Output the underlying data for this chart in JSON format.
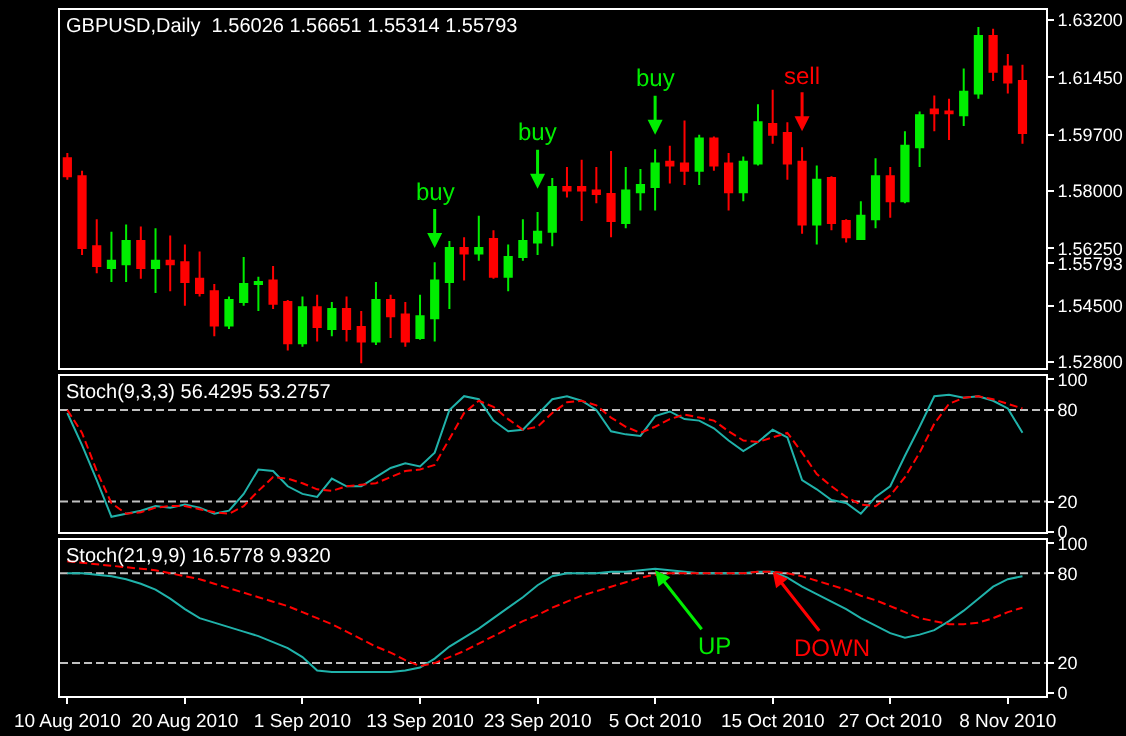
{
  "chart_data": [
    {
      "type": "candlestick",
      "title": "GBPUSD,Daily  1.56026 1.56651 1.55314 1.55793",
      "categories": [
        null,
        null,
        null,
        null,
        null,
        null,
        null,
        null,
        null,
        null,
        null,
        null,
        null,
        null,
        null,
        null,
        null,
        null,
        null,
        null,
        null,
        null,
        null,
        null,
        null,
        null,
        null,
        null,
        null,
        null,
        null,
        null,
        null,
        null,
        null,
        null,
        null,
        null,
        null,
        null,
        null,
        null,
        null,
        null,
        null,
        null,
        null,
        null,
        null,
        null,
        null,
        null,
        null,
        null,
        null,
        null,
        null,
        null,
        null,
        null,
        null,
        null,
        null,
        null,
        null,
        null
      ],
      "ohlc": [
        [
          1.5899,
          1.5915,
          1.5833,
          1.5844
        ],
        [
          1.5844,
          1.5861,
          1.5604,
          1.5626
        ],
        [
          1.5631,
          1.5713,
          1.5549,
          1.5571
        ],
        [
          1.5565,
          1.5675,
          1.5522,
          1.5587
        ],
        [
          1.5576,
          1.5697,
          1.5522,
          1.5647
        ],
        [
          1.5647,
          1.5691,
          1.5532,
          1.5565
        ],
        [
          1.5565,
          1.5686,
          1.5489,
          1.5587
        ],
        [
          1.5587,
          1.5664,
          1.5494,
          1.5576
        ],
        [
          1.5582,
          1.5636,
          1.545,
          1.5522
        ],
        [
          1.5532,
          1.5615,
          1.5478,
          1.5489
        ],
        [
          1.5494,
          1.5516,
          1.5357,
          1.539
        ],
        [
          1.539,
          1.5478,
          1.5379,
          1.5467
        ],
        [
          1.5461,
          1.5598,
          1.545,
          1.5516
        ],
        [
          1.5516,
          1.5538,
          1.5434,
          1.5522
        ],
        [
          1.5527,
          1.5571,
          1.544,
          1.5456
        ],
        [
          1.5461,
          1.5467,
          1.5314,
          1.5336
        ],
        [
          1.5336,
          1.5478,
          1.5325,
          1.5445
        ],
        [
          1.5445,
          1.5483,
          1.5341,
          1.5385
        ],
        [
          1.5379,
          1.5461,
          1.5357,
          1.544
        ],
        [
          1.544,
          1.5478,
          1.5341,
          1.5379
        ],
        [
          1.5385,
          1.5434,
          1.5275,
          1.5341
        ],
        [
          1.5341,
          1.5522,
          1.533,
          1.5467
        ],
        [
          1.5467,
          1.5483,
          1.5352,
          1.5418
        ],
        [
          1.5423,
          1.5461,
          1.5325,
          1.5341
        ],
        [
          1.5352,
          1.5483,
          1.5346,
          1.5418
        ],
        [
          1.5412,
          1.5582,
          1.5341,
          1.5527
        ],
        [
          1.5522,
          1.5647,
          1.544,
          1.5626
        ],
        [
          1.5626,
          1.5658,
          1.5527,
          1.5609
        ],
        [
          1.5609,
          1.5724,
          1.5587,
          1.5626
        ],
        [
          1.5653,
          1.568,
          1.5532,
          1.5538
        ],
        [
          1.5538,
          1.5636,
          1.5494,
          1.5598
        ],
        [
          1.5598,
          1.5713,
          1.5587,
          1.5647
        ],
        [
          1.5642,
          1.5735,
          1.5604,
          1.5675
        ],
        [
          1.5675,
          1.5839,
          1.5631,
          1.5811
        ],
        [
          1.5811,
          1.5872,
          1.5779,
          1.5801
        ],
        [
          1.5811,
          1.5894,
          1.5708,
          1.5801
        ],
        [
          1.5801,
          1.5872,
          1.5762,
          1.579
        ],
        [
          1.579,
          1.5921,
          1.5658,
          1.5708
        ],
        [
          1.5702,
          1.5872,
          1.5686,
          1.5801
        ],
        [
          1.5795,
          1.5866,
          1.574,
          1.5817
        ],
        [
          1.5811,
          1.5926,
          1.574,
          1.5883
        ],
        [
          1.5888,
          1.5937,
          1.5822,
          1.5877
        ],
        [
          1.5883,
          1.6014,
          1.5817,
          1.5861
        ],
        [
          1.5861,
          1.597,
          1.5817,
          1.5959
        ],
        [
          1.5959,
          1.5965,
          1.5861,
          1.5877
        ],
        [
          1.5883,
          1.5915,
          1.574,
          1.5795
        ],
        [
          1.5795,
          1.5904,
          1.5768,
          1.5888
        ],
        [
          1.5883,
          1.6063,
          1.5877,
          1.6008
        ],
        [
          1.6003,
          1.6107,
          1.5943,
          1.597
        ],
        [
          1.5976,
          1.6008,
          1.5833,
          1.5883
        ],
        [
          1.5888,
          1.5932,
          1.5669,
          1.5697
        ],
        [
          1.5697,
          1.5877,
          1.5636,
          1.5833
        ],
        [
          1.5839,
          1.5844,
          1.568,
          1.5702
        ],
        [
          1.5708,
          1.5713,
          1.5642,
          1.5658
        ],
        [
          1.5653,
          1.5768,
          1.5653,
          1.5724
        ],
        [
          1.5713,
          1.5899,
          1.5686,
          1.5844
        ],
        [
          1.5844,
          1.5872,
          1.5718,
          1.5768
        ],
        [
          1.5768,
          1.5981,
          1.5762,
          1.5937
        ],
        [
          1.5932,
          1.6041,
          1.5872,
          1.603
        ],
        [
          1.6047,
          1.609,
          1.5981,
          1.6036
        ],
        [
          1.6041,
          1.608,
          1.5954,
          1.6036
        ],
        [
          1.603,
          1.6172,
          1.5997,
          1.6101
        ],
        [
          1.6096,
          1.6298,
          1.608,
          1.6271
        ],
        [
          1.6271,
          1.6293,
          1.6134,
          1.6162
        ],
        [
          1.6178,
          1.6216,
          1.6096,
          1.6129
        ],
        [
          1.6134,
          1.6183,
          1.5943,
          1.5976
        ]
      ],
      "ylim": [
        1.526,
        1.635
      ],
      "yticks": [
        {
          "value": 1.528,
          "label": "1.52800"
        },
        {
          "value": 1.545,
          "label": "1.54500"
        },
        {
          "value": 1.55793,
          "label": "1.55793"
        },
        {
          "value": 1.5625,
          "label": "1.56250"
        },
        {
          "value": 1.58,
          "label": "1.58000"
        },
        {
          "value": 1.597,
          "label": "1.59700"
        },
        {
          "value": 1.6145,
          "label": "1.61450"
        },
        {
          "value": 1.632,
          "label": "1.63200"
        }
      ],
      "annotations": [
        "buy",
        "buy",
        "buy",
        "sell"
      ],
      "tick_labels": "y",
      "grid": false
    },
    {
      "type": "line",
      "title": "Stoch(9,3,3) 56.4295 53.2757",
      "categories": [
        null,
        null,
        null,
        null,
        null,
        null,
        null,
        null,
        null,
        null,
        null,
        null,
        null,
        null,
        null,
        null,
        null,
        null,
        null,
        null,
        null,
        null,
        null,
        null,
        null,
        null,
        null,
        null,
        null,
        null,
        null,
        null,
        null,
        null,
        null,
        null,
        null,
        null,
        null,
        null,
        null,
        null,
        null,
        null,
        null,
        null,
        null,
        null,
        null,
        null,
        null,
        null,
        null,
        null,
        null,
        null,
        null,
        null,
        null,
        null,
        null,
        null,
        null,
        null,
        null,
        null
      ],
      "series": [
        {
          "color": "#20b2aa",
          "line_style": "solid",
          "values": [
            78,
            57,
            34,
            10,
            12,
            14,
            17,
            16,
            18,
            16,
            12,
            14,
            25,
            41,
            40,
            30,
            25,
            23,
            35,
            30,
            30,
            36,
            42,
            45,
            43,
            52,
            80,
            89,
            87,
            73,
            66,
            67,
            77,
            87,
            89,
            86,
            80,
            66,
            64,
            63,
            76,
            79,
            74,
            73,
            68,
            60,
            53,
            59,
            67,
            62,
            34,
            28,
            21,
            19,
            12,
            23,
            30,
            50,
            69,
            89,
            90,
            88,
            89,
            86,
            81,
            65
          ]
        },
        {
          "color": "#ff0000",
          "line_style": "dashed",
          "values": [
            80,
            65,
            40,
            19,
            12,
            13,
            16,
            17,
            17,
            15,
            13,
            12,
            17,
            27,
            36,
            35,
            32,
            28,
            27,
            30,
            31,
            32,
            36,
            40,
            41,
            44,
            61,
            78,
            86,
            82,
            74,
            67,
            69,
            78,
            85,
            86,
            83,
            75,
            69,
            65,
            69,
            74,
            77,
            75,
            73,
            66,
            60,
            59,
            62,
            65,
            52,
            38,
            30,
            23,
            18,
            17,
            24,
            36,
            52,
            71,
            84,
            88,
            89,
            87,
            84,
            81
          ]
        }
      ],
      "ylim": [
        0,
        102
      ],
      "yticks": [
        0,
        20,
        80,
        100
      ],
      "ref_lines": [
        {
          "axis": "y",
          "value": 20,
          "color": "#c0c0c0",
          "line_style": "dashed"
        },
        {
          "axis": "y",
          "value": 80,
          "color": "#c0c0c0",
          "line_style": "dashed"
        }
      ],
      "tick_labels": "y",
      "grid": false,
      "marker": "none"
    },
    {
      "type": "line",
      "title": "Stoch(21,9,9) 16.5778 9.9320",
      "categories": [
        "10 Aug 2010",
        null,
        null,
        null,
        null,
        null,
        null,
        null,
        "20 Aug 2010",
        null,
        null,
        null,
        null,
        null,
        null,
        null,
        "1 Sep 2010",
        null,
        null,
        null,
        null,
        null,
        null,
        null,
        "13 Sep 2010",
        null,
        null,
        null,
        null,
        null,
        null,
        null,
        "23 Sep 2010",
        null,
        null,
        null,
        null,
        null,
        null,
        null,
        "5 Oct 2010",
        null,
        null,
        null,
        null,
        null,
        null,
        null,
        "15 Oct 2010",
        null,
        null,
        null,
        null,
        null,
        null,
        null,
        "27 Oct 2010",
        null,
        null,
        null,
        null,
        null,
        null,
        null,
        "8 Nov 2010",
        null
      ],
      "series": [
        {
          "color": "#20b2aa",
          "line_style": "solid",
          "values": [
            80,
            80,
            79,
            78,
            76,
            73,
            69,
            63,
            56,
            50,
            47,
            44,
            41,
            38,
            34,
            30,
            24,
            15,
            14,
            14,
            14,
            14,
            14,
            15,
            17,
            23,
            31,
            37,
            43,
            50,
            57,
            64,
            72,
            78,
            80,
            80,
            80,
            81,
            81,
            82,
            83,
            82,
            81,
            80,
            80,
            80,
            80,
            81,
            81,
            77,
            71,
            66,
            61,
            56,
            50,
            45,
            40,
            37,
            39,
            42,
            48,
            55,
            63,
            71,
            76,
            78
          ]
        },
        {
          "color": "#ff0000",
          "line_style": "dashed",
          "values": [
            88,
            87,
            86,
            85,
            84,
            83,
            82,
            80,
            78,
            76,
            73,
            70,
            67,
            64,
            61,
            58,
            54,
            50,
            46,
            41,
            36,
            31,
            27,
            22,
            18,
            20,
            24,
            28,
            33,
            38,
            43,
            48,
            52,
            57,
            61,
            65,
            68,
            71,
            74,
            77,
            79,
            80,
            80,
            80,
            80,
            80,
            80,
            81,
            81,
            80,
            78,
            75,
            72,
            69,
            65,
            62,
            58,
            54,
            50,
            48,
            46,
            46,
            47,
            50,
            54,
            57
          ]
        }
      ],
      "ylim": [
        -2,
        102
      ],
      "yticks": [
        0,
        20,
        80,
        100
      ],
      "ref_lines": [
        {
          "axis": "y",
          "value": 20,
          "color": "#c0c0c0",
          "line_style": "dashed"
        },
        {
          "axis": "y",
          "value": 80,
          "color": "#c0c0c0",
          "line_style": "dashed"
        }
      ],
      "annotations": [
        {
          "text": "UP",
          "y": 82
        },
        {
          "text": "DOWN",
          "y": 81
        }
      ],
      "grid": false,
      "marker": "none"
    }
  ]
}
